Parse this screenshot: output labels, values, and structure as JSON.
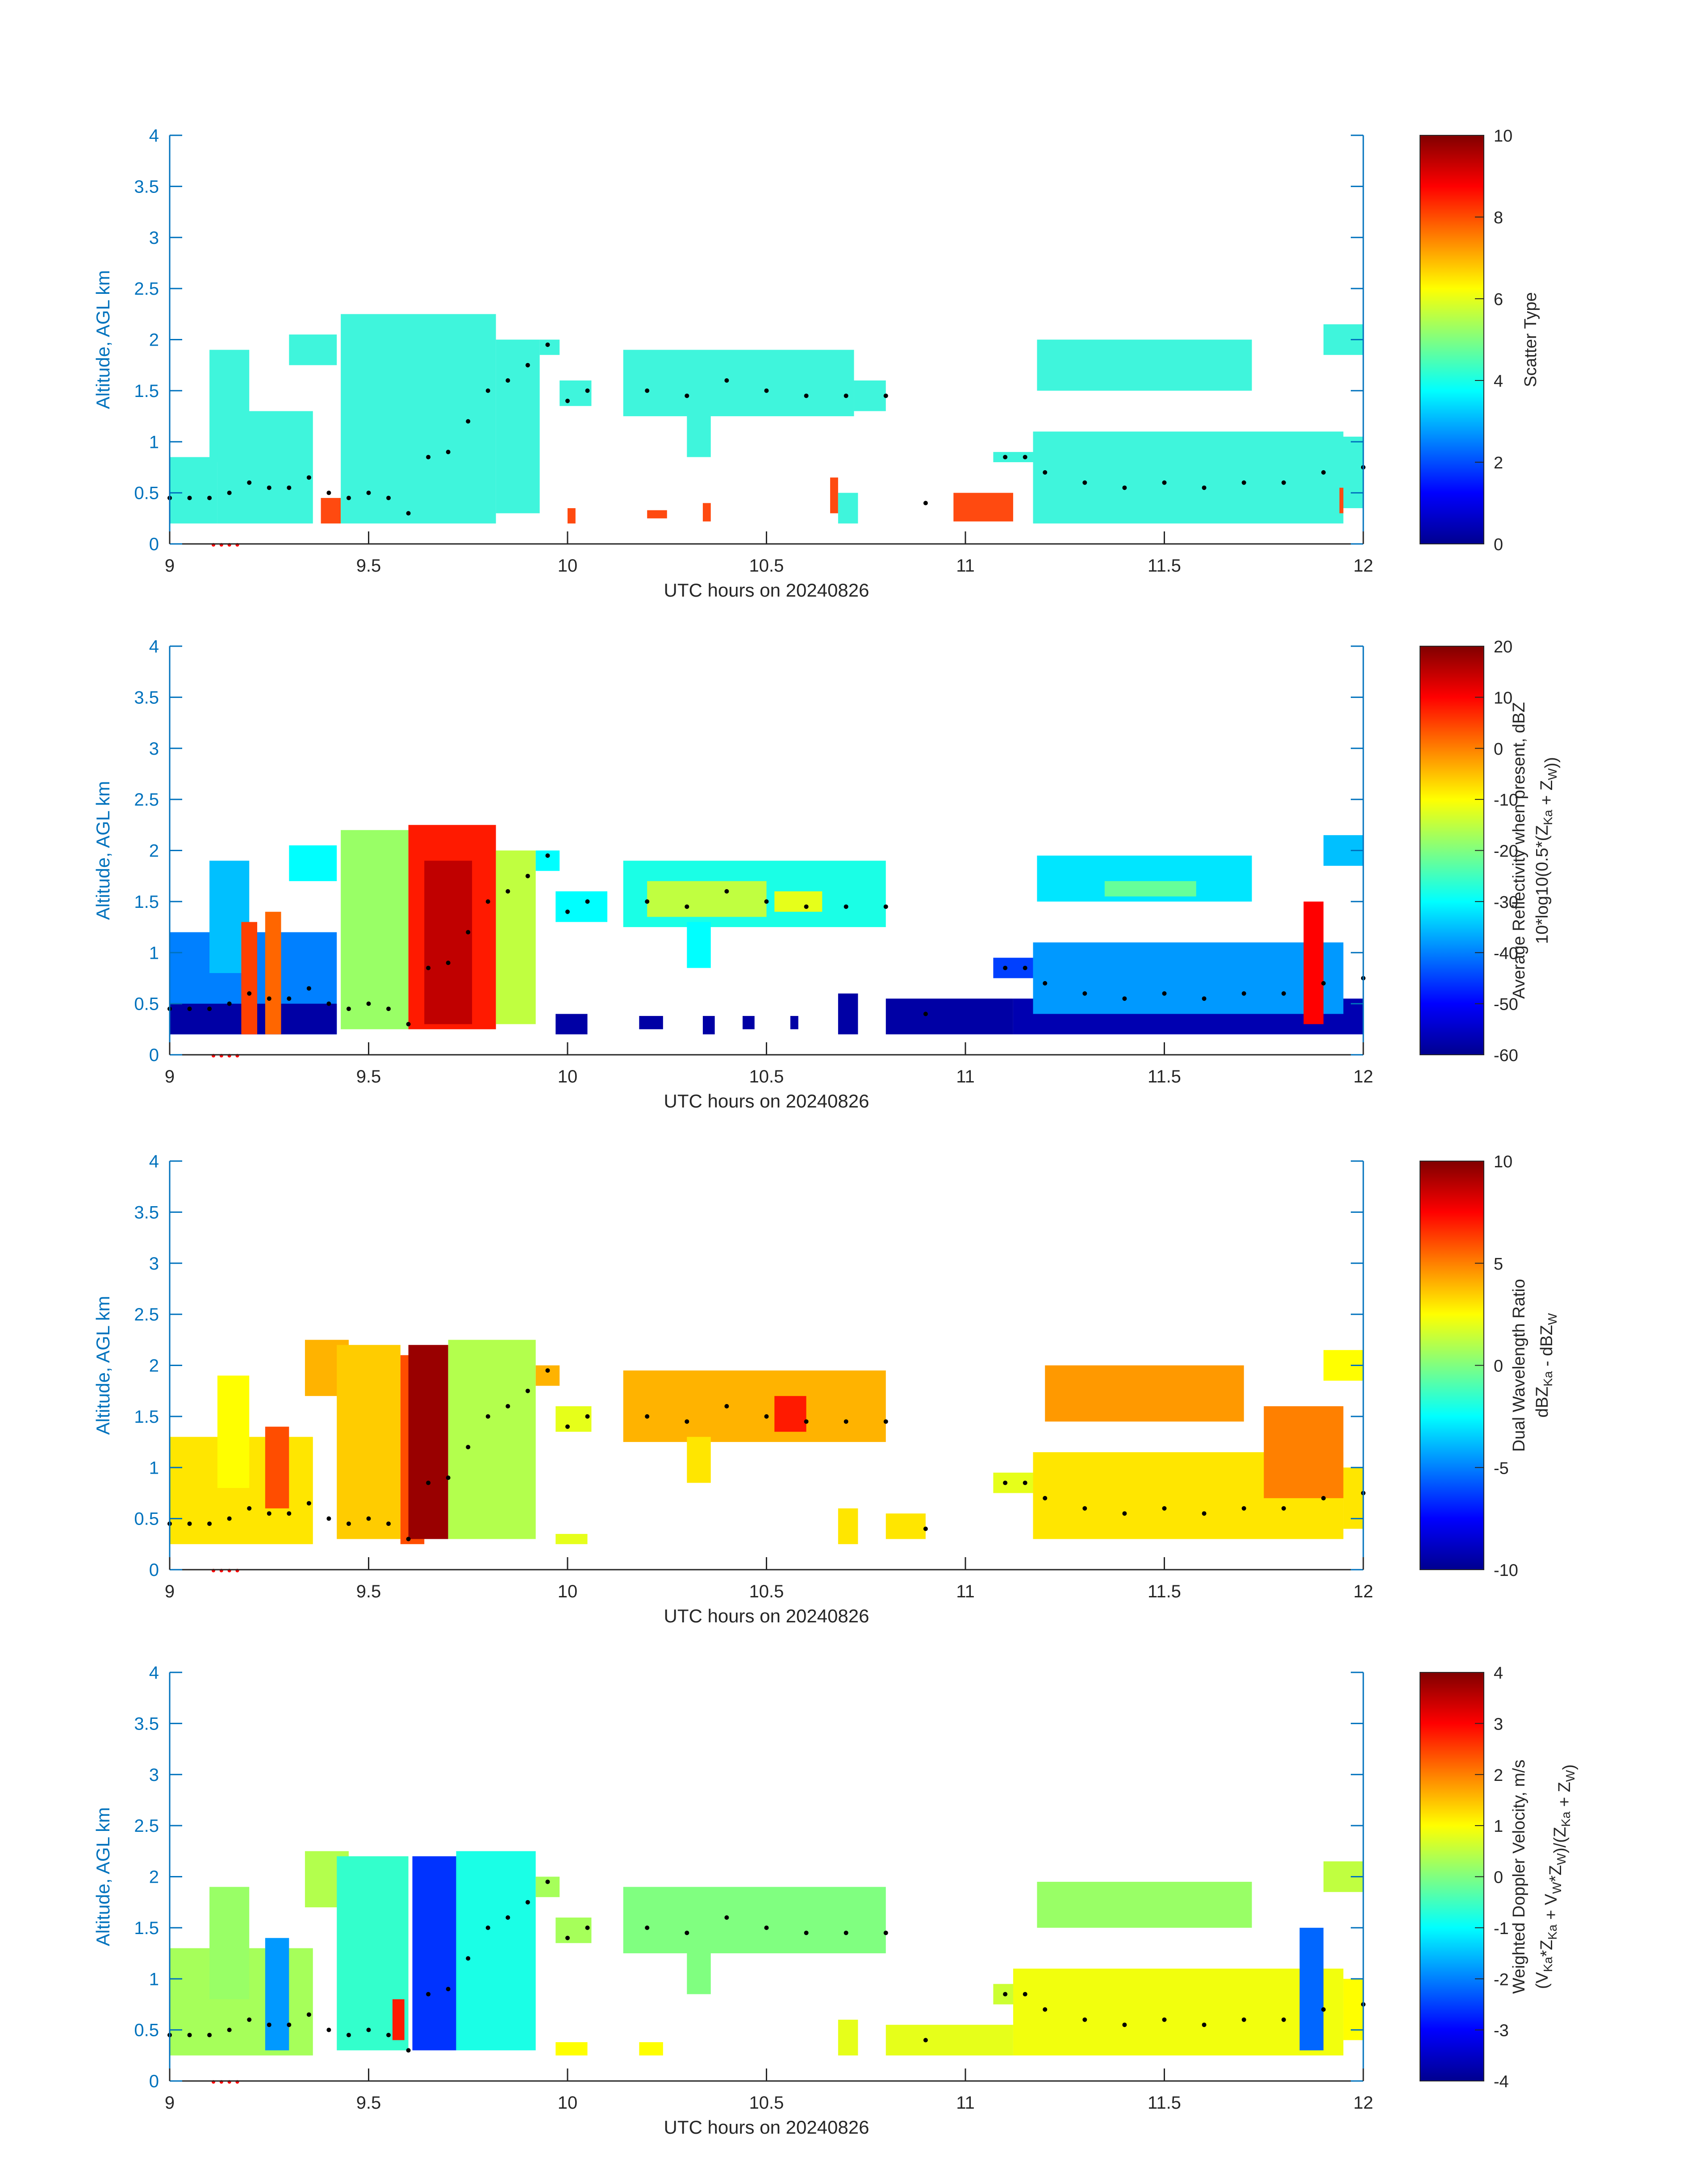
{
  "xlabel": "UTC hours on 20240826",
  "ylabel": "Altitude, AGL km",
  "colors": {
    "axis": "#0072BD",
    "text": "#262626",
    "jet": [
      "#00008f",
      "#0000ff",
      "#0080ff",
      "#00ffff",
      "#80ff80",
      "#ffff00",
      "#ff8000",
      "#ff0000",
      "#800000"
    ],
    "scatter_fill": "#3ff5dc",
    "scatter_red": "#ff4a10",
    "marker_black": "#000000",
    "marker_red": "#ff0000"
  },
  "chart_data": [
    {
      "type": "heatmap",
      "panel": "scatter-type",
      "xlim": [
        9,
        12
      ],
      "ylim": [
        0,
        4
      ],
      "xticks": [
        "9",
        "9.5",
        "10",
        "10.5",
        "11",
        "11.5",
        "12"
      ],
      "yticks": [
        "0",
        "0.5",
        "1",
        "1.5",
        "2",
        "2.5",
        "3",
        "3.5",
        "4"
      ],
      "colorbar": {
        "label_lines": [
          "Scatter Type"
        ],
        "clim": [
          0,
          10
        ],
        "ticks": [
          "0",
          "2",
          "4",
          "6",
          "8",
          "10"
        ]
      },
      "features": [
        {
          "t0": 9.0,
          "t1": 9.12,
          "z0": 0.2,
          "z1": 0.85,
          "value": 3.8
        },
        {
          "t0": 9.1,
          "t1": 9.2,
          "z0": 0.8,
          "z1": 1.9,
          "value": 3.8
        },
        {
          "t0": 9.12,
          "t1": 9.36,
          "z0": 0.2,
          "z1": 1.3,
          "value": 3.8
        },
        {
          "t0": 9.3,
          "t1": 9.42,
          "z0": 1.75,
          "z1": 2.05,
          "value": 3.8
        },
        {
          "t0": 9.38,
          "t1": 9.43,
          "z0": 0.2,
          "z1": 0.45,
          "value": 8.2
        },
        {
          "t0": 9.43,
          "t1": 9.82,
          "z0": 0.2,
          "z1": 2.25,
          "value": 3.8
        },
        {
          "t0": 9.82,
          "t1": 9.93,
          "z0": 0.3,
          "z1": 2.0,
          "value": 3.8
        },
        {
          "t0": 9.93,
          "t1": 9.98,
          "z0": 1.85,
          "z1": 2.0,
          "value": 3.8
        },
        {
          "t0": 9.98,
          "t1": 10.06,
          "z0": 1.35,
          "z1": 1.6,
          "value": 3.8
        },
        {
          "t0": 10.0,
          "t1": 10.02,
          "z0": 0.2,
          "z1": 0.35,
          "value": 8.2
        },
        {
          "t0": 10.14,
          "t1": 10.72,
          "z0": 1.25,
          "z1": 1.9,
          "value": 3.8
        },
        {
          "t0": 10.3,
          "t1": 10.36,
          "z0": 0.85,
          "z1": 1.3,
          "value": 3.8
        },
        {
          "t0": 10.72,
          "t1": 10.8,
          "z0": 1.3,
          "z1": 1.6,
          "value": 3.8
        },
        {
          "t0": 10.2,
          "t1": 10.25,
          "z0": 0.25,
          "z1": 0.33,
          "value": 8.2
        },
        {
          "t0": 10.34,
          "t1": 10.36,
          "z0": 0.22,
          "z1": 0.4,
          "value": 8.2
        },
        {
          "t0": 10.66,
          "t1": 10.68,
          "z0": 0.3,
          "z1": 0.65,
          "value": 8.2
        },
        {
          "t0": 10.68,
          "t1": 10.73,
          "z0": 0.2,
          "z1": 0.5,
          "value": 3.8
        },
        {
          "t0": 10.97,
          "t1": 11.12,
          "z0": 0.22,
          "z1": 0.5,
          "value": 8.2
        },
        {
          "t0": 11.07,
          "t1": 11.17,
          "z0": 0.8,
          "z1": 0.9,
          "value": 3.8
        },
        {
          "t0": 11.17,
          "t1": 11.95,
          "z0": 0.2,
          "z1": 1.1,
          "value": 3.8
        },
        {
          "t0": 11.18,
          "t1": 11.72,
          "z0": 1.5,
          "z1": 2.0,
          "value": 3.8
        },
        {
          "t0": 11.9,
          "t1": 12.0,
          "z0": 1.85,
          "z1": 2.15,
          "value": 3.8
        },
        {
          "t0": 11.93,
          "t1": 12.0,
          "z0": 0.35,
          "z1": 1.05,
          "value": 3.8
        },
        {
          "t0": 11.94,
          "t1": 11.95,
          "z0": 0.3,
          "z1": 0.55,
          "value": 8.2
        }
      ]
    },
    {
      "type": "heatmap",
      "panel": "average-reflectivity",
      "xlim": [
        9,
        12
      ],
      "ylim": [
        0,
        4
      ],
      "xticks": [
        "9",
        "9.5",
        "10",
        "10.5",
        "11",
        "11.5",
        "12"
      ],
      "yticks": [
        "0",
        "0.5",
        "1",
        "1.5",
        "2",
        "2.5",
        "3",
        "3.5",
        "4"
      ],
      "colorbar": {
        "label_lines": [
          "Average Reflectivity when present, dBZ",
          "10*log10(0.5*(Z<sub>Ka</sub> + Z<sub>W</sub>))"
        ],
        "clim": [
          -60,
          20
        ],
        "ticks": [
          "-60",
          "-50",
          "-40",
          "-30",
          "-20",
          "-10",
          "0",
          "10",
          "20"
        ]
      },
      "features": [
        {
          "t0": 9.0,
          "t1": 9.42,
          "z0": 0.2,
          "z1": 1.2,
          "value": -40
        },
        {
          "t0": 9.1,
          "t1": 9.2,
          "z0": 0.8,
          "z1": 1.9,
          "value": -35
        },
        {
          "t0": 9.0,
          "t1": 9.42,
          "z0": 0.2,
          "z1": 0.5,
          "value": -58
        },
        {
          "t0": 9.18,
          "t1": 9.22,
          "z0": 0.2,
          "z1": 1.3,
          "value": 5
        },
        {
          "t0": 9.24,
          "t1": 9.28,
          "z0": 0.2,
          "z1": 1.4,
          "value": 2
        },
        {
          "t0": 9.3,
          "t1": 9.42,
          "z0": 1.7,
          "z1": 2.05,
          "value": -30
        },
        {
          "t0": 9.43,
          "t1": 9.6,
          "z0": 0.25,
          "z1": 2.2,
          "value": -18
        },
        {
          "t0": 9.6,
          "t1": 9.82,
          "z0": 0.25,
          "z1": 2.25,
          "value": 8
        },
        {
          "t0": 9.64,
          "t1": 9.76,
          "z0": 0.3,
          "z1": 1.9,
          "value": 15
        },
        {
          "t0": 9.82,
          "t1": 9.92,
          "z0": 0.3,
          "z1": 2.0,
          "value": -15
        },
        {
          "t0": 9.92,
          "t1": 9.98,
          "z0": 1.8,
          "z1": 2.0,
          "value": -30
        },
        {
          "t0": 9.97,
          "t1": 10.05,
          "z0": 0.2,
          "z1": 0.4,
          "value": -58
        },
        {
          "t0": 9.97,
          "t1": 10.1,
          "z0": 1.3,
          "z1": 1.6,
          "value": -30
        },
        {
          "t0": 10.14,
          "t1": 10.8,
          "z0": 1.25,
          "z1": 1.9,
          "value": -28
        },
        {
          "t0": 10.2,
          "t1": 10.5,
          "z0": 1.35,
          "z1": 1.7,
          "value": -15
        },
        {
          "t0": 10.52,
          "t1": 10.64,
          "z0": 1.4,
          "z1": 1.6,
          "value": -12
        },
        {
          "t0": 10.3,
          "t1": 10.36,
          "z0": 0.85,
          "z1": 1.3,
          "value": -30
        },
        {
          "t0": 10.18,
          "t1": 10.24,
          "z0": 0.25,
          "z1": 0.38,
          "value": -58
        },
        {
          "t0": 10.34,
          "t1": 10.37,
          "z0": 0.2,
          "z1": 0.38,
          "value": -58
        },
        {
          "t0": 10.44,
          "t1": 10.47,
          "z0": 0.25,
          "z1": 0.38,
          "value": -58
        },
        {
          "t0": 10.56,
          "t1": 10.58,
          "z0": 0.25,
          "z1": 0.38,
          "value": -58
        },
        {
          "t0": 10.68,
          "t1": 10.73,
          "z0": 0.2,
          "z1": 0.6,
          "value": -58
        },
        {
          "t0": 10.8,
          "t1": 11.12,
          "z0": 0.2,
          "z1": 0.55,
          "value": -58
        },
        {
          "t0": 11.07,
          "t1": 11.17,
          "z0": 0.75,
          "z1": 0.95,
          "value": -45
        },
        {
          "t0": 11.12,
          "t1": 12.0,
          "z0": 0.2,
          "z1": 0.55,
          "value": -57
        },
        {
          "t0": 11.17,
          "t1": 11.95,
          "z0": 0.4,
          "z1": 1.1,
          "value": -38
        },
        {
          "t0": 11.18,
          "t1": 11.72,
          "z0": 1.5,
          "z1": 1.95,
          "value": -32
        },
        {
          "t0": 11.35,
          "t1": 11.58,
          "z0": 1.55,
          "z1": 1.7,
          "value": -22
        },
        {
          "t0": 11.85,
          "t1": 11.9,
          "z0": 0.3,
          "z1": 1.5,
          "value": 10
        },
        {
          "t0": 11.9,
          "t1": 12.0,
          "z0": 1.85,
          "z1": 2.15,
          "value": -35
        }
      ]
    },
    {
      "type": "heatmap",
      "panel": "dual-wavelength-ratio",
      "xlim": [
        9,
        12
      ],
      "ylim": [
        0,
        4
      ],
      "xticks": [
        "9",
        "9.5",
        "10",
        "10.5",
        "11",
        "11.5",
        "12"
      ],
      "yticks": [
        "0",
        "0.5",
        "1",
        "1.5",
        "2",
        "2.5",
        "3",
        "3.5",
        "4"
      ],
      "colorbar": {
        "label_lines": [
          "Dual Wavelength Ratio",
          "dBZ<sub>Ka</sub> - dBZ<sub>W</sub>"
        ],
        "clim": [
          -10,
          10
        ],
        "ticks": [
          "-10",
          "-5",
          "0",
          "5",
          "10"
        ]
      },
      "features": [
        {
          "t0": 9.0,
          "t1": 9.36,
          "z0": 0.25,
          "z1": 1.3,
          "value": 3
        },
        {
          "t0": 9.12,
          "t1": 9.2,
          "z0": 0.8,
          "z1": 1.9,
          "value": 2.5
        },
        {
          "t0": 9.24,
          "t1": 9.3,
          "z0": 0.6,
          "z1": 1.4,
          "value": 6
        },
        {
          "t0": 9.34,
          "t1": 9.45,
          "z0": 1.7,
          "z1": 2.25,
          "value": 4
        },
        {
          "t0": 9.42,
          "t1": 9.58,
          "z0": 0.3,
          "z1": 2.2,
          "value": 3.5
        },
        {
          "t0": 9.58,
          "t1": 9.64,
          "z0": 0.25,
          "z1": 2.1,
          "value": 6
        },
        {
          "t0": 9.6,
          "t1": 9.7,
          "z0": 0.3,
          "z1": 2.2,
          "value": 9.5
        },
        {
          "t0": 9.7,
          "t1": 9.92,
          "z0": 0.3,
          "z1": 2.25,
          "value": 1
        },
        {
          "t0": 9.92,
          "t1": 9.98,
          "z0": 1.8,
          "z1": 2.0,
          "value": 4
        },
        {
          "t0": 9.97,
          "t1": 10.06,
          "z0": 1.35,
          "z1": 1.6,
          "value": 2
        },
        {
          "t0": 9.97,
          "t1": 10.05,
          "z0": 0.25,
          "z1": 0.35,
          "value": 2
        },
        {
          "t0": 10.14,
          "t1": 10.8,
          "z0": 1.25,
          "z1": 1.95,
          "value": 4
        },
        {
          "t0": 10.3,
          "t1": 10.36,
          "z0": 0.85,
          "z1": 1.3,
          "value": 3
        },
        {
          "t0": 10.52,
          "t1": 10.6,
          "z0": 1.35,
          "z1": 1.7,
          "value": 7
        },
        {
          "t0": 10.68,
          "t1": 10.73,
          "z0": 0.25,
          "z1": 0.6,
          "value": 3
        },
        {
          "t0": 10.8,
          "t1": 10.9,
          "z0": 0.3,
          "z1": 0.55,
          "value": 3
        },
        {
          "t0": 11.07,
          "t1": 11.17,
          "z0": 0.75,
          "z1": 0.95,
          "value": 2
        },
        {
          "t0": 11.17,
          "t1": 11.95,
          "z0": 0.3,
          "z1": 1.15,
          "value": 3
        },
        {
          "t0": 11.2,
          "t1": 11.7,
          "z0": 1.45,
          "z1": 2.0,
          "value": 4.5
        },
        {
          "t0": 11.75,
          "t1": 11.95,
          "z0": 0.7,
          "z1": 1.6,
          "value": 5
        },
        {
          "t0": 11.9,
          "t1": 12.0,
          "z0": 1.85,
          "z1": 2.15,
          "value": 2.5
        },
        {
          "t0": 11.95,
          "t1": 12.0,
          "z0": 0.4,
          "z1": 1.0,
          "value": 3
        }
      ]
    },
    {
      "type": "heatmap",
      "panel": "weighted-doppler-velocity",
      "xlim": [
        9,
        12
      ],
      "ylim": [
        0,
        4
      ],
      "xticks": [
        "9",
        "9.5",
        "10",
        "10.5",
        "11",
        "11.5",
        "12"
      ],
      "yticks": [
        "0",
        "0.5",
        "1",
        "1.5",
        "2",
        "2.5",
        "3",
        "3.5",
        "4"
      ],
      "colorbar": {
        "label_lines": [
          "Weighted Doppler Velocity, m/s",
          "(V<sub>Ka</sub>*Z<sub>Ka</sub> + V<sub>W</sub>*Z<sub>W</sub>)/(Z<sub>Ka</sub> + Z<sub>W</sub>)"
        ],
        "clim": [
          -4,
          4
        ],
        "ticks": [
          "-4",
          "-3",
          "-2",
          "-1",
          "0",
          "1",
          "2",
          "3",
          "4"
        ]
      },
      "features": [
        {
          "t0": 9.0,
          "t1": 9.36,
          "z0": 0.25,
          "z1": 1.3,
          "value": 0.3
        },
        {
          "t0": 9.1,
          "t1": 9.2,
          "z0": 0.8,
          "z1": 1.9,
          "value": 0.2
        },
        {
          "t0": 9.24,
          "t1": 9.3,
          "z0": 0.3,
          "z1": 1.4,
          "value": -1.8
        },
        {
          "t0": 9.34,
          "t1": 9.45,
          "z0": 1.7,
          "z1": 2.25,
          "value": 0.4
        },
        {
          "t0": 9.42,
          "t1": 9.6,
          "z0": 0.3,
          "z1": 2.2,
          "value": -0.6
        },
        {
          "t0": 9.56,
          "t1": 9.59,
          "z0": 0.4,
          "z1": 0.8,
          "value": 2.8
        },
        {
          "t0": 9.61,
          "t1": 9.72,
          "z0": 0.3,
          "z1": 2.2,
          "value": -2.6
        },
        {
          "t0": 9.72,
          "t1": 9.92,
          "z0": 0.3,
          "z1": 2.25,
          "value": -0.8
        },
        {
          "t0": 9.92,
          "t1": 9.98,
          "z0": 1.8,
          "z1": 2.0,
          "value": 0.3
        },
        {
          "t0": 9.97,
          "t1": 10.06,
          "z0": 1.35,
          "z1": 1.6,
          "value": 0.3
        },
        {
          "t0": 9.97,
          "t1": 10.05,
          "z0": 0.25,
          "z1": 0.38,
          "value": 1
        },
        {
          "t0": 10.14,
          "t1": 10.8,
          "z0": 1.25,
          "z1": 1.9,
          "value": 0
        },
        {
          "t0": 10.3,
          "t1": 10.36,
          "z0": 0.85,
          "z1": 1.3,
          "value": 0
        },
        {
          "t0": 10.18,
          "t1": 10.24,
          "z0": 0.25,
          "z1": 0.38,
          "value": 1
        },
        {
          "t0": 10.68,
          "t1": 10.73,
          "z0": 0.25,
          "z1": 0.6,
          "value": 0.8
        },
        {
          "t0": 10.8,
          "t1": 11.12,
          "z0": 0.25,
          "z1": 0.55,
          "value": 0.8
        },
        {
          "t0": 11.07,
          "t1": 11.17,
          "z0": 0.75,
          "z1": 0.95,
          "value": 0.6
        },
        {
          "t0": 11.12,
          "t1": 11.95,
          "z0": 0.25,
          "z1": 1.1,
          "value": 0.9
        },
        {
          "t0": 11.18,
          "t1": 11.72,
          "z0": 1.5,
          "z1": 1.95,
          "value": 0.2
        },
        {
          "t0": 11.84,
          "t1": 11.9,
          "z0": 0.3,
          "z1": 1.5,
          "value": -2.2
        },
        {
          "t0": 11.9,
          "t1": 12.0,
          "z0": 1.85,
          "z1": 2.15,
          "value": 0.5
        },
        {
          "t0": 11.95,
          "t1": 12.0,
          "z0": 0.4,
          "z1": 1.0,
          "value": 1
        }
      ]
    }
  ],
  "cloud_base_track": {
    "t": [
      9.0,
      9.05,
      9.1,
      9.15,
      9.2,
      9.25,
      9.3,
      9.35,
      9.4,
      9.45,
      9.5,
      9.55,
      9.6,
      9.65,
      9.7,
      9.75,
      9.8,
      9.85,
      9.9,
      9.95,
      10.0,
      10.05,
      10.2,
      10.3,
      10.4,
      10.5,
      10.6,
      10.7,
      10.8,
      10.9,
      11.1,
      11.15,
      11.2,
      11.3,
      11.4,
      11.5,
      11.6,
      11.7,
      11.8,
      11.9,
      12.0
    ],
    "z": [
      0.45,
      0.45,
      0.45,
      0.5,
      0.6,
      0.55,
      0.55,
      0.65,
      0.5,
      0.45,
      0.5,
      0.45,
      0.3,
      0.85,
      0.9,
      1.2,
      1.5,
      1.6,
      1.75,
      1.95,
      1.4,
      1.5,
      1.5,
      1.45,
      1.6,
      1.5,
      1.45,
      1.45,
      1.45,
      0.4,
      0.85,
      0.85,
      0.7,
      0.6,
      0.55,
      0.6,
      0.55,
      0.6,
      0.6,
      0.7,
      0.75
    ]
  },
  "surface_markers": {
    "t": [
      9.11,
      9.13,
      9.15,
      9.17
    ],
    "z": [
      0.0,
      0.0,
      0.0,
      0.0
    ]
  }
}
